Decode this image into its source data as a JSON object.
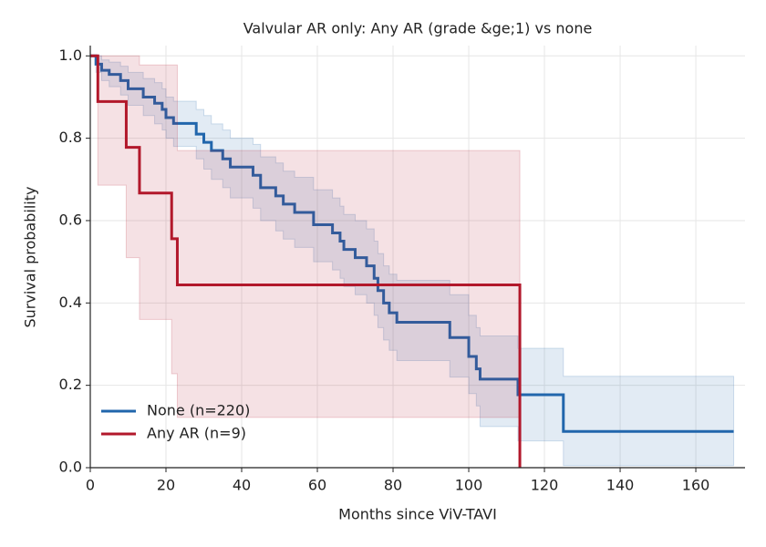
{
  "chart_data": {
    "type": "step",
    "title": "Valvular AR only: Any AR (grade &ge;1) vs none",
    "x_label": "Months since ViV-TAVI",
    "y_label": "Survival probability",
    "xlim": [
      0,
      173
    ],
    "ylim": [
      0,
      1.025
    ],
    "xticks": [
      0,
      20,
      40,
      60,
      80,
      100,
      120,
      140,
      160
    ],
    "yticks": [
      {
        "value": 0,
        "label": "0.0"
      },
      0.2,
      0.4,
      0.6,
      0.8,
      {
        "value": 1,
        "label": "1.0"
      }
    ],
    "grid": true,
    "legend": "lower left",
    "series": [
      {
        "name": "None (n=220)",
        "color": "#2166ac",
        "x": [
          0,
          1.5,
          3,
          5,
          8,
          10,
          14,
          17,
          19,
          20,
          22,
          28,
          30,
          32,
          35,
          37,
          43,
          45,
          49,
          51,
          54,
          59,
          64,
          66,
          67,
          70,
          73,
          75,
          76,
          77.5,
          79,
          81,
          95,
          100,
          102,
          103,
          113,
          125,
          170
        ],
        "values": [
          1,
          0.98,
          0.965,
          0.955,
          0.94,
          0.92,
          0.9,
          0.885,
          0.87,
          0.85,
          0.836,
          0.81,
          0.79,
          0.77,
          0.75,
          0.73,
          0.71,
          0.68,
          0.66,
          0.64,
          0.62,
          0.59,
          0.57,
          0.55,
          0.53,
          0.51,
          0.49,
          0.46,
          0.43,
          0.4,
          0.376,
          0.353,
          0.316,
          0.27,
          0.24,
          0.215,
          0.177,
          0.088,
          0.088
        ],
        "ci_upper": [
          1,
          1,
          0.99,
          0.985,
          0.975,
          0.96,
          0.945,
          0.935,
          0.92,
          0.9,
          0.89,
          0.87,
          0.855,
          0.835,
          0.82,
          0.8,
          0.785,
          0.755,
          0.74,
          0.72,
          0.705,
          0.675,
          0.655,
          0.635,
          0.615,
          0.6,
          0.58,
          0.55,
          0.52,
          0.49,
          0.47,
          0.455,
          0.42,
          0.37,
          0.34,
          0.32,
          0.29,
          0.222,
          0.222
        ],
        "ci_lower": [
          1,
          0.96,
          0.94,
          0.925,
          0.905,
          0.88,
          0.855,
          0.835,
          0.82,
          0.8,
          0.78,
          0.75,
          0.725,
          0.7,
          0.68,
          0.655,
          0.63,
          0.6,
          0.575,
          0.555,
          0.535,
          0.5,
          0.48,
          0.46,
          0.44,
          0.42,
          0.4,
          0.37,
          0.34,
          0.31,
          0.285,
          0.26,
          0.22,
          0.18,
          0.15,
          0.1,
          0.065,
          0.005,
          0.005
        ]
      },
      {
        "name": "Any AR (n=9)",
        "color": "#b2182b",
        "x": [
          0,
          2,
          9.5,
          13,
          21.5,
          23,
          113.5
        ],
        "values": [
          1,
          0.889,
          0.778,
          0.667,
          0.556,
          0.444,
          0
        ],
        "ci_upper": [
          1,
          1,
          1,
          0.978,
          0.978,
          0.77,
          null
        ],
        "ci_lower": [
          1,
          0.686,
          0.51,
          0.36,
          0.228,
          0.122,
          null
        ]
      }
    ]
  }
}
